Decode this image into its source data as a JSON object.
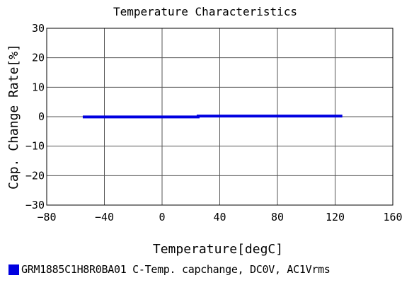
{
  "chart_data": {
    "type": "line",
    "title": "Temperature  Characteristics",
    "xlabel": "Temperature[degC]",
    "ylabel": "Cap. Change Rate[%]",
    "xlim": [
      -80,
      160
    ],
    "ylim": [
      -30,
      30
    ],
    "xticks": [
      -80,
      -40,
      0,
      40,
      80,
      120,
      160
    ],
    "yticks": [
      30,
      20,
      10,
      0,
      -10,
      -20,
      -30
    ],
    "grid": true,
    "legend_position": "bottom",
    "series": [
      {
        "name": "GRM1885C1H8R0BA01 C-Temp. capchange, DC0V, AC1Vrms",
        "color": "#0000e0",
        "x": [
          -55,
          25,
          25,
          125
        ],
        "y": [
          -0.1,
          -0.1,
          0.2,
          0.2
        ]
      }
    ]
  }
}
